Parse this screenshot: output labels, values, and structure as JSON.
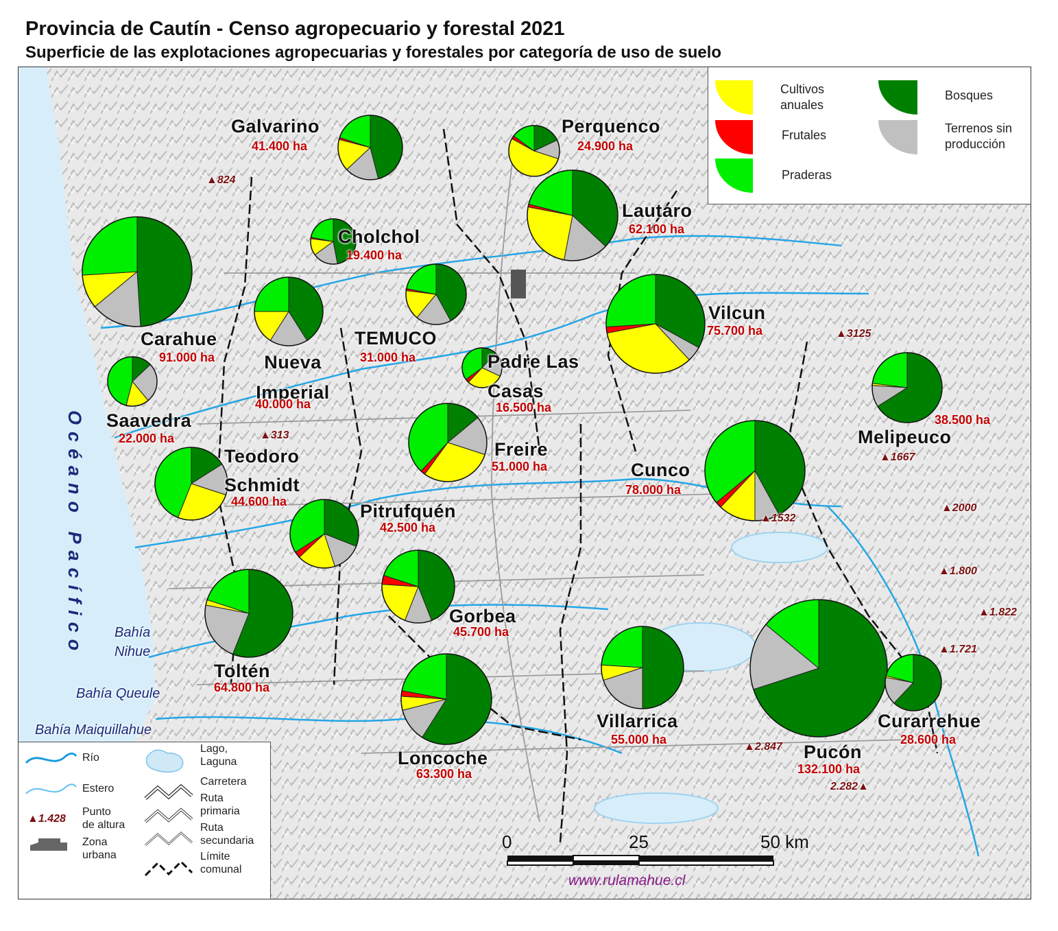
{
  "title": "Provincia de Cautín -  Censo agropecuario y forestal 2021",
  "subtitle": "Superficie de las explotaciones agropecuarias y forestales por categoría de uso de suelo",
  "categories": [
    {
      "key": "cultivos",
      "label": "Cultivos anuales",
      "color": "#ffff00"
    },
    {
      "key": "frutales",
      "label": "Frutales",
      "color": "#ff0000"
    },
    {
      "key": "praderas",
      "label": "Praderas",
      "color": "#00ee00"
    },
    {
      "key": "bosques",
      "label": "Bosques",
      "color": "#008000"
    },
    {
      "key": "terrenos",
      "label": "Terrenos sin producción",
      "color": "#c0c0c0"
    }
  ],
  "legend_top": {
    "cultivos": "Cultivos\nanuales",
    "frutales": "Frutales",
    "praderas": "Praderas",
    "bosques": "Bosques",
    "terrenos": "Terrenos sin\nproducción"
  },
  "comunas": [
    {
      "name": "Galvarino",
      "area": "41.400 ha",
      "values": {
        "cultivos": 16,
        "frutales": 1,
        "praderas": 20,
        "bosques": 46,
        "terrenos": 17
      }
    },
    {
      "name": "Perquenco",
      "area": "24.900 ha",
      "values": {
        "cultivos": 53,
        "frutales": 2,
        "praderas": 15,
        "bosques": 18,
        "terrenos": 12
      }
    },
    {
      "name": "Lautaro",
      "area": "62.100 ha",
      "values": {
        "cultivos": 25,
        "frutales": 1,
        "praderas": 21,
        "bosques": 37,
        "terrenos": 16
      }
    },
    {
      "name": "Cholchol",
      "area": "19.400 ha",
      "values": {
        "cultivos": 12,
        "frutales": 1,
        "praderas": 22,
        "bosques": 47,
        "terrenos": 18
      }
    },
    {
      "name": "Carahue",
      "area": "91.000 ha",
      "values": {
        "cultivos": 10,
        "frutales": 0,
        "praderas": 26,
        "bosques": 49,
        "terrenos": 15
      }
    },
    {
      "name": "Nueva Imperial",
      "area": "40.000 ha",
      "values": {
        "cultivos": 16,
        "frutales": 0,
        "praderas": 25,
        "bosques": 41,
        "terrenos": 18
      }
    },
    {
      "name": "TEMUCO",
      "area": "31.000 ha",
      "values": {
        "cultivos": 16,
        "frutales": 1,
        "praderas": 22,
        "bosques": 42,
        "terrenos": 19
      }
    },
    {
      "name": "Padre Las Casas",
      "area": "16.500 ha",
      "values": {
        "cultivos": 30,
        "frutales": 3,
        "praderas": 35,
        "bosques": 12,
        "terrenos": 20
      }
    },
    {
      "name": "Vilcun",
      "area": "75.700 ha",
      "values": {
        "cultivos": 34,
        "frutales": 2,
        "praderas": 26,
        "bosques": 33,
        "terrenos": 5
      }
    },
    {
      "name": "Melipeuco",
      "area": "38.500 ha",
      "values": {
        "cultivos": 1,
        "frutales": 0,
        "praderas": 23,
        "bosques": 66,
        "terrenos": 10
      }
    },
    {
      "name": "Saavedra",
      "area": "22.000 ha",
      "values": {
        "cultivos": 15,
        "frutales": 0,
        "praderas": 46,
        "bosques": 13,
        "terrenos": 26
      }
    },
    {
      "name": "Teodoro Schmidt",
      "area": "44.600 ha",
      "values": {
        "cultivos": 26,
        "frutales": 0,
        "praderas": 44,
        "bosques": 16,
        "terrenos": 14
      }
    },
    {
      "name": "Freire",
      "area": "51.000 ha",
      "values": {
        "cultivos": 30,
        "frutales": 2,
        "praderas": 38,
        "bosques": 14,
        "terrenos": 16
      }
    },
    {
      "name": "Cunco",
      "area": "78.000 ha",
      "values": {
        "cultivos": 12,
        "frutales": 2,
        "praderas": 36,
        "bosques": 42,
        "terrenos": 8
      }
    },
    {
      "name": "Pitrufquén",
      "area": "42.500 ha",
      "values": {
        "cultivos": 18,
        "frutales": 3,
        "praderas": 34,
        "bosques": 31,
        "terrenos": 14
      }
    },
    {
      "name": "Gorbea",
      "area": "45.700 ha",
      "values": {
        "cultivos": 20,
        "frutales": 4,
        "praderas": 20,
        "bosques": 44,
        "terrenos": 12
      }
    },
    {
      "name": "Toltén",
      "area": "64.800 ha",
      "values": {
        "cultivos": 2,
        "frutales": 0,
        "praderas": 20,
        "bosques": 56,
        "terrenos": 22
      }
    },
    {
      "name": "Loncoche",
      "area": "63.300 ha",
      "values": {
        "cultivos": 5,
        "frutales": 2,
        "praderas": 22,
        "bosques": 59,
        "terrenos": 12
      }
    },
    {
      "name": "Villarrica",
      "area": "55.000 ha",
      "values": {
        "cultivos": 6,
        "frutales": 0,
        "praderas": 24,
        "bosques": 50,
        "terrenos": 20
      }
    },
    {
      "name": "Pucón",
      "area": "132.100 ha",
      "values": {
        "cultivos": 0,
        "frutales": 0,
        "praderas": 14,
        "bosques": 70,
        "terrenos": 16
      }
    },
    {
      "name": "Curarrehue",
      "area": "28.600 ha",
      "values": {
        "cultivos": 1,
        "frutales": 0,
        "praderas": 21,
        "bosques": 62,
        "terrenos": 16
      }
    }
  ],
  "peaks": [
    "824",
    "313",
    "3125",
    "1667",
    "2000",
    "1532",
    "1.800",
    "1.822",
    "1.721",
    "2.847",
    "2.282"
  ],
  "geo_labels": {
    "ocean": "Océano Pacífico",
    "bahia_nihue": "Bahía\nNihue",
    "bahia_queule": "Bahía Queule",
    "bahia_maiquillahue": "Bahía Maiquillahue"
  },
  "legend_bottom": {
    "rio": "Río",
    "estero": "Estero",
    "punto_altura": "Punto\nde altura",
    "punto_altura_sample": "1.428",
    "zona_urbana": "Zona\nurbana",
    "lago": "Lago,\nLaguna",
    "carretera": "Carretera",
    "ruta_primaria": "Ruta\nprimaria",
    "ruta_secundaria": "Ruta\nsecundaria",
    "limite_comunal": "Límite\ncomunal"
  },
  "scale": {
    "ticks": [
      "0",
      "25",
      "50 km"
    ]
  },
  "credit": "www.rulamahue.cl"
}
